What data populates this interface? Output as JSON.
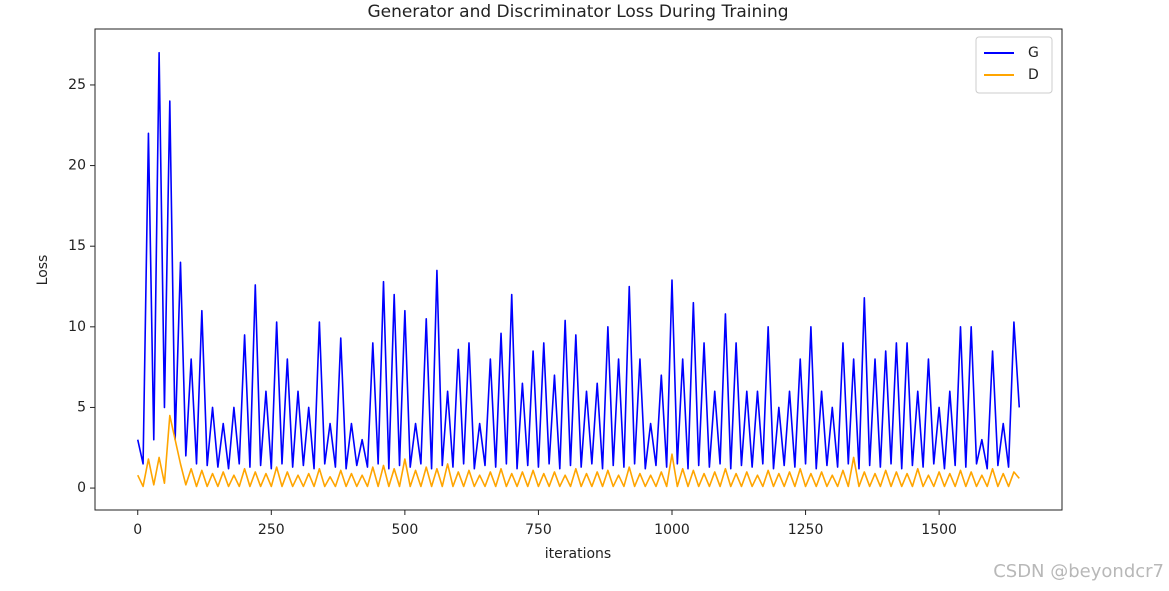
{
  "chart_data": {
    "type": "line",
    "title": "Generator and Discriminator Loss During Training",
    "x_label": "iterations",
    "y_label": "Loss",
    "x": [
      0,
      10,
      20,
      30,
      40,
      50,
      60,
      70,
      80,
      90,
      100,
      110,
      120,
      130,
      140,
      150,
      160,
      170,
      180,
      190,
      200,
      210,
      220,
      230,
      240,
      250,
      260,
      270,
      280,
      290,
      300,
      310,
      320,
      330,
      340,
      350,
      360,
      370,
      380,
      390,
      400,
      410,
      420,
      430,
      440,
      450,
      460,
      470,
      480,
      490,
      500,
      510,
      520,
      530,
      540,
      550,
      560,
      570,
      580,
      590,
      600,
      610,
      620,
      630,
      640,
      650,
      660,
      670,
      680,
      690,
      700,
      710,
      720,
      730,
      740,
      750,
      760,
      770,
      780,
      790,
      800,
      810,
      820,
      830,
      840,
      850,
      860,
      870,
      880,
      890,
      900,
      910,
      920,
      930,
      940,
      950,
      960,
      970,
      980,
      990,
      1000,
      1010,
      1020,
      1030,
      1040,
      1050,
      1060,
      1070,
      1080,
      1090,
      1100,
      1110,
      1120,
      1130,
      1140,
      1150,
      1160,
      1170,
      1180,
      1190,
      1200,
      1210,
      1220,
      1230,
      1240,
      1250,
      1260,
      1270,
      1280,
      1290,
      1300,
      1310,
      1320,
      1330,
      1340,
      1350,
      1360,
      1370,
      1380,
      1390,
      1400,
      1410,
      1420,
      1430,
      1440,
      1450,
      1460,
      1470,
      1480,
      1490,
      1500,
      1510,
      1520,
      1530,
      1540,
      1550,
      1560,
      1570,
      1580,
      1590,
      1600,
      1610,
      1620,
      1630,
      1640,
      1650
    ],
    "series": [
      {
        "name": "G",
        "color": "#0000ff",
        "values": [
          3,
          1.5,
          22,
          3,
          27,
          5,
          24,
          3,
          14,
          2,
          8,
          1.5,
          11,
          1.4,
          5,
          1.3,
          4,
          1.2,
          5,
          1.5,
          9.5,
          1.3,
          12.6,
          1.4,
          6,
          1.2,
          10.3,
          1.5,
          8,
          1.3,
          6,
          1.4,
          5,
          1.2,
          10.3,
          1.5,
          4,
          1.3,
          9.3,
          1.2,
          4,
          1.4,
          3,
          1.3,
          9,
          1.5,
          12.8,
          1.2,
          12,
          1.4,
          11,
          1.3,
          4,
          1.5,
          10.5,
          1.2,
          13.5,
          1.4,
          6,
          1.3,
          8.6,
          1.5,
          9,
          1.2,
          4,
          1.4,
          8,
          1.3,
          9.6,
          1.5,
          12,
          1.2,
          6.5,
          1.4,
          8.5,
          1.3,
          9,
          1.5,
          7,
          1.2,
          10.4,
          1.4,
          9.5,
          1.3,
          6,
          1.5,
          6.5,
          1.2,
          10,
          1.4,
          8,
          1.3,
          12.5,
          1.5,
          8,
          1.2,
          4,
          1.4,
          7,
          1.3,
          12.9,
          1.5,
          8,
          1.2,
          11.5,
          1.4,
          9,
          1.3,
          6,
          1.5,
          10.8,
          1.2,
          9,
          1.4,
          6,
          1.3,
          6,
          1.5,
          10,
          1.2,
          5,
          1.4,
          6,
          1.3,
          8,
          1.5,
          10,
          1.2,
          6,
          1.4,
          5,
          1.3,
          9,
          1.5,
          8,
          1.2,
          11.8,
          1.4,
          8,
          1.3,
          8.5,
          1.5,
          9,
          1.2,
          9,
          1.4,
          6,
          1.3,
          8,
          1.5,
          5,
          1.2,
          6,
          1.4,
          10,
          1.3,
          10,
          1.5,
          3,
          1.2,
          8.5,
          1.4,
          4,
          1.3,
          10.3,
          5
        ]
      },
      {
        "name": "D",
        "color": "#ffa500",
        "values": [
          0.8,
          0.1,
          1.8,
          0.2,
          1.9,
          0.3,
          4.5,
          3,
          1.5,
          0.2,
          1.2,
          0.1,
          1.1,
          0.1,
          0.9,
          0.1,
          1,
          0.1,
          0.8,
          0.1,
          1.2,
          0.1,
          1,
          0.1,
          0.9,
          0.1,
          1.3,
          0.1,
          1,
          0.1,
          0.8,
          0.1,
          0.9,
          0.1,
          1.2,
          0.1,
          0.7,
          0.1,
          1.1,
          0.1,
          0.9,
          0.1,
          0.8,
          0.1,
          1.3,
          0.1,
          1.4,
          0.1,
          1.2,
          0.1,
          1.8,
          0.1,
          1.1,
          0.1,
          1.3,
          0.1,
          1.2,
          0.1,
          1.5,
          0.1,
          1,
          0.1,
          1.1,
          0.1,
          0.8,
          0.1,
          1,
          0.1,
          1.2,
          0.1,
          0.9,
          0.1,
          1,
          0.1,
          1.1,
          0.1,
          0.9,
          0.1,
          1,
          0.1,
          0.8,
          0.1,
          1.2,
          0.1,
          0.9,
          0.1,
          1,
          0.1,
          1.1,
          0.1,
          0.8,
          0.1,
          1.3,
          0.1,
          0.9,
          0.1,
          0.8,
          0.1,
          1,
          0.1,
          2.1,
          0.1,
          1.2,
          0.1,
          1.1,
          0.1,
          0.9,
          0.1,
          1,
          0.1,
          1.2,
          0.1,
          0.9,
          0.1,
          1,
          0.1,
          0.8,
          0.1,
          1.1,
          0.1,
          0.9,
          0.1,
          1,
          0.1,
          1.2,
          0.1,
          0.9,
          0.1,
          1,
          0.1,
          0.8,
          0.1,
          1.1,
          0.1,
          1.9,
          0.1,
          1,
          0.1,
          0.9,
          0.1,
          1.1,
          0.1,
          1,
          0.1,
          0.9,
          0.1,
          1.2,
          0.1,
          0.8,
          0.1,
          1,
          0.1,
          0.9,
          0.1,
          1.1,
          0.1,
          1,
          0.1,
          0.8,
          0.1,
          1.2,
          0.1,
          0.9,
          0.1,
          1,
          0.6
        ]
      }
    ],
    "xlim": [
      -80,
      1730
    ],
    "ylim": [
      -1.36,
      28.47
    ],
    "xticks": [
      0,
      250,
      500,
      750,
      1000,
      1250,
      1500
    ],
    "yticks": [
      0,
      5,
      10,
      15,
      20,
      25
    ],
    "legend": "upper right"
  },
  "watermark": "CSDN @beyondcr7"
}
